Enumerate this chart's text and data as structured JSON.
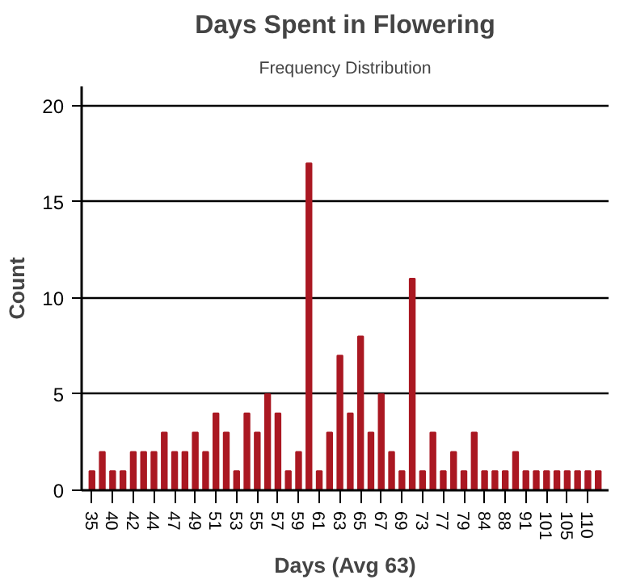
{
  "chart_data": {
    "type": "bar",
    "title": "Days Spent in Flowering",
    "subtitle": "Frequency Distribution",
    "xlabel": "Days (Avg 63)",
    "ylabel": "Count",
    "categories": [
      "35",
      null,
      "40",
      null,
      "42",
      null,
      "44",
      null,
      "47",
      null,
      "49",
      null,
      "51",
      null,
      "53",
      null,
      "55",
      null,
      "57",
      null,
      "59",
      null,
      "61",
      null,
      "63",
      null,
      "65",
      null,
      "67",
      null,
      "69",
      null,
      "73",
      null,
      "77",
      null,
      "79",
      null,
      "84",
      null,
      "88",
      null,
      "91",
      null,
      "101",
      null,
      "105",
      null,
      "110",
      null
    ],
    "values": [
      1,
      2,
      1,
      1,
      2,
      2,
      2,
      3,
      2,
      2,
      3,
      2,
      4,
      3,
      1,
      4,
      3,
      5,
      4,
      1,
      2,
      17,
      1,
      3,
      7,
      4,
      8,
      3,
      5,
      2,
      1,
      11,
      1,
      3,
      1,
      2,
      1,
      3,
      1,
      1,
      1,
      2,
      1,
      1,
      1,
      1,
      1,
      1,
      1,
      1
    ],
    "color": "#aa1822",
    "ylim": [
      0,
      21
    ],
    "yticks": [
      0,
      5,
      10,
      15,
      20
    ],
    "grid": "y"
  }
}
